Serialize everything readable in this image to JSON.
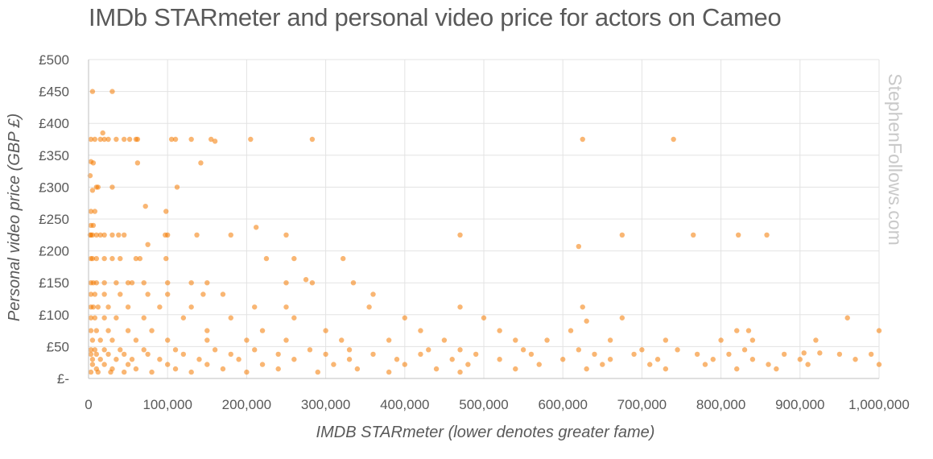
{
  "chart_data": {
    "type": "scatter",
    "title": "IMDb STARmeter and personal video price for actors on Cameo",
    "xlabel": "IMDB STARmeter (lower denotes greater fame)",
    "ylabel": "Personal video price (GBP £)",
    "xlim": [
      0,
      1000000
    ],
    "ylim": [
      0,
      500
    ],
    "x_ticks": [
      0,
      100000,
      200000,
      300000,
      400000,
      500000,
      600000,
      700000,
      800000,
      900000,
      1000000
    ],
    "x_tick_labels": [
      "0",
      "100,000",
      "200,000",
      "300,000",
      "400,000",
      "500,000",
      "600,000",
      "700,000",
      "800,000",
      "900,000",
      "1,000,000"
    ],
    "y_ticks": [
      0,
      50,
      100,
      150,
      200,
      250,
      300,
      350,
      400,
      450,
      500
    ],
    "y_tick_labels": [
      "£-",
      "£50",
      "£100",
      "£150",
      "£200",
      "£250",
      "£300",
      "£350",
      "£400",
      "£450",
      "£500"
    ],
    "grid": true,
    "legend": "none",
    "point_color": "#F47A00",
    "watermark": "StephenFollows.com",
    "series": [
      {
        "x": [
          5000,
          30000,
          3000,
          8000,
          15000,
          20000,
          25000,
          35000,
          45000,
          52000,
          60000,
          62000,
          105000,
          110000,
          130000,
          155000,
          160000,
          205000,
          283000,
          625000,
          740000,
          18000,
          62000,
          142000,
          3000,
          6000,
          2000,
          10000,
          12000,
          30000,
          5000,
          3000,
          8000,
          112000,
          72000,
          98000,
          3000,
          6000,
          2000,
          5000,
          3000,
          10000,
          15000,
          20000,
          30000,
          38000,
          45000,
          97000,
          100000,
          137000,
          180000,
          250000,
          470000,
          675000,
          765000,
          822000,
          858000,
          75000,
          212000,
          620000,
          3000,
          5000,
          10000,
          20000,
          30000,
          40000,
          60000,
          65000,
          98000,
          225000,
          260000,
          322000,
          3000,
          6000,
          10000,
          20000,
          35000,
          50000,
          55000,
          70000,
          100000,
          130000,
          150000,
          250000,
          275000,
          283000,
          335000,
          3000,
          8000,
          20000,
          40000,
          75000,
          100000,
          145000,
          170000,
          360000,
          3000,
          6000,
          12000,
          25000,
          50000,
          90000,
          130000,
          210000,
          250000,
          355000,
          470000,
          625000,
          3000,
          8000,
          20000,
          35000,
          70000,
          120000,
          180000,
          260000,
          400000,
          500000,
          630000,
          675000,
          3000,
          10000,
          25000,
          50000,
          80000,
          150000,
          220000,
          300000,
          420000,
          520000,
          610000,
          820000,
          835000,
          5000,
          15000,
          30000,
          60000,
          100000,
          150000,
          200000,
          250000,
          320000,
          380000,
          450000,
          540000,
          580000,
          660000,
          730000,
          800000,
          840000,
          920000,
          3000,
          8000,
          20000,
          40000,
          70000,
          110000,
          160000,
          210000,
          280000,
          330000,
          430000,
          470000,
          550000,
          620000,
          700000,
          745000,
          830000,
          905000,
          925000,
          960000,
          1000000,
          3000,
          10000,
          25000,
          45000,
          75000,
          120000,
          180000,
          240000,
          300000,
          360000,
          420000,
          490000,
          560000,
          640000,
          690000,
          770000,
          810000,
          880000,
          950000,
          990000,
          5000,
          15000,
          35000,
          55000,
          90000,
          140000,
          190000,
          260000,
          330000,
          390000,
          460000,
          520000,
          600000,
          660000,
          720000,
          790000,
          840000,
          900000,
          970000,
          5000,
          20000,
          50000,
          100000,
          150000,
          220000,
          310000,
          400000,
          480000,
          570000,
          650000,
          710000,
          780000,
          860000,
          910000,
          1000000,
          10000,
          30000,
          60000,
          110000,
          170000,
          240000,
          340000,
          440000,
          540000,
          630000,
          730000,
          820000,
          870000,
          3000,
          12000,
          28000,
          45000,
          80000,
          130000,
          200000,
          290000,
          380000,
          470000
        ],
        "y": [
          450,
          450,
          375,
          375,
          375,
          375,
          375,
          375,
          375,
          375,
          375,
          375,
          375,
          375,
          375,
          375,
          372,
          375,
          375,
          375,
          375,
          385,
          338,
          338,
          340,
          338,
          318,
          300,
          300,
          300,
          295,
          262,
          262,
          300,
          270,
          262,
          240,
          240,
          225,
          225,
          225,
          225,
          225,
          225,
          225,
          225,
          225,
          225,
          225,
          225,
          225,
          225,
          225,
          225,
          225,
          225,
          225,
          210,
          237,
          207,
          188,
          188,
          188,
          188,
          188,
          188,
          188,
          188,
          188,
          188,
          188,
          188,
          150,
          150,
          150,
          150,
          150,
          150,
          150,
          150,
          150,
          150,
          150,
          150,
          155,
          150,
          150,
          132,
          132,
          132,
          132,
          132,
          132,
          132,
          132,
          132,
          112,
          112,
          112,
          112,
          112,
          112,
          112,
          112,
          112,
          112,
          112,
          112,
          95,
          95,
          95,
          95,
          95,
          95,
          95,
          95,
          95,
          95,
          90,
          95,
          75,
          75,
          75,
          75,
          75,
          75,
          75,
          75,
          75,
          75,
          75,
          75,
          75,
          60,
          60,
          60,
          60,
          60,
          60,
          60,
          60,
          60,
          60,
          60,
          60,
          60,
          60,
          60,
          60,
          60,
          60,
          45,
          45,
          45,
          45,
          45,
          45,
          45,
          45,
          45,
          45,
          45,
          45,
          45,
          45,
          45,
          45,
          45,
          40,
          40,
          95,
          75,
          38,
          38,
          38,
          38,
          38,
          38,
          38,
          38,
          38,
          38,
          38,
          38,
          38,
          38,
          38,
          38,
          38,
          38,
          38,
          38,
          30,
          30,
          30,
          30,
          30,
          30,
          30,
          30,
          30,
          30,
          30,
          30,
          30,
          30,
          30,
          30,
          30,
          30,
          30,
          22,
          22,
          22,
          22,
          22,
          22,
          22,
          22,
          22,
          22,
          22,
          22,
          22,
          22,
          22,
          22,
          15,
          15,
          15,
          15,
          15,
          15,
          15,
          15,
          15,
          15,
          15,
          15,
          15,
          10,
          10,
          10,
          10,
          10,
          10,
          10,
          10,
          10,
          10
        ]
      }
    ]
  }
}
